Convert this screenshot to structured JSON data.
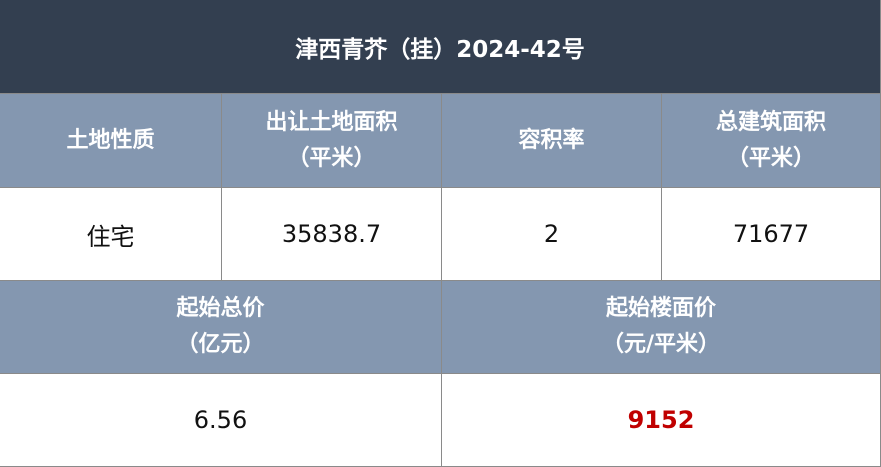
{
  "title": "津西青芥（挂）2024-42号",
  "row1_headers": [
    {
      "line1": "土地性质",
      "line2": ""
    },
    {
      "line1": "出让土地面积",
      "line2": "（平米）"
    },
    {
      "line1": "容积率",
      "line2": ""
    },
    {
      "line1": "总建筑面积",
      "line2": "（平米）"
    }
  ],
  "row1_values": [
    "住宅",
    "35838.7",
    "2",
    "71677"
  ],
  "row2_headers": [
    {
      "line1": "起始总价",
      "line2": "（亿元）"
    },
    {
      "line1": "起始楼面价",
      "line2": "（元/平米）"
    }
  ],
  "row2_values": [
    "6.56",
    "9152"
  ],
  "colors": {
    "title_bg": "#333f50",
    "header_bg": "#8497b0",
    "highlight": "#c00000"
  }
}
